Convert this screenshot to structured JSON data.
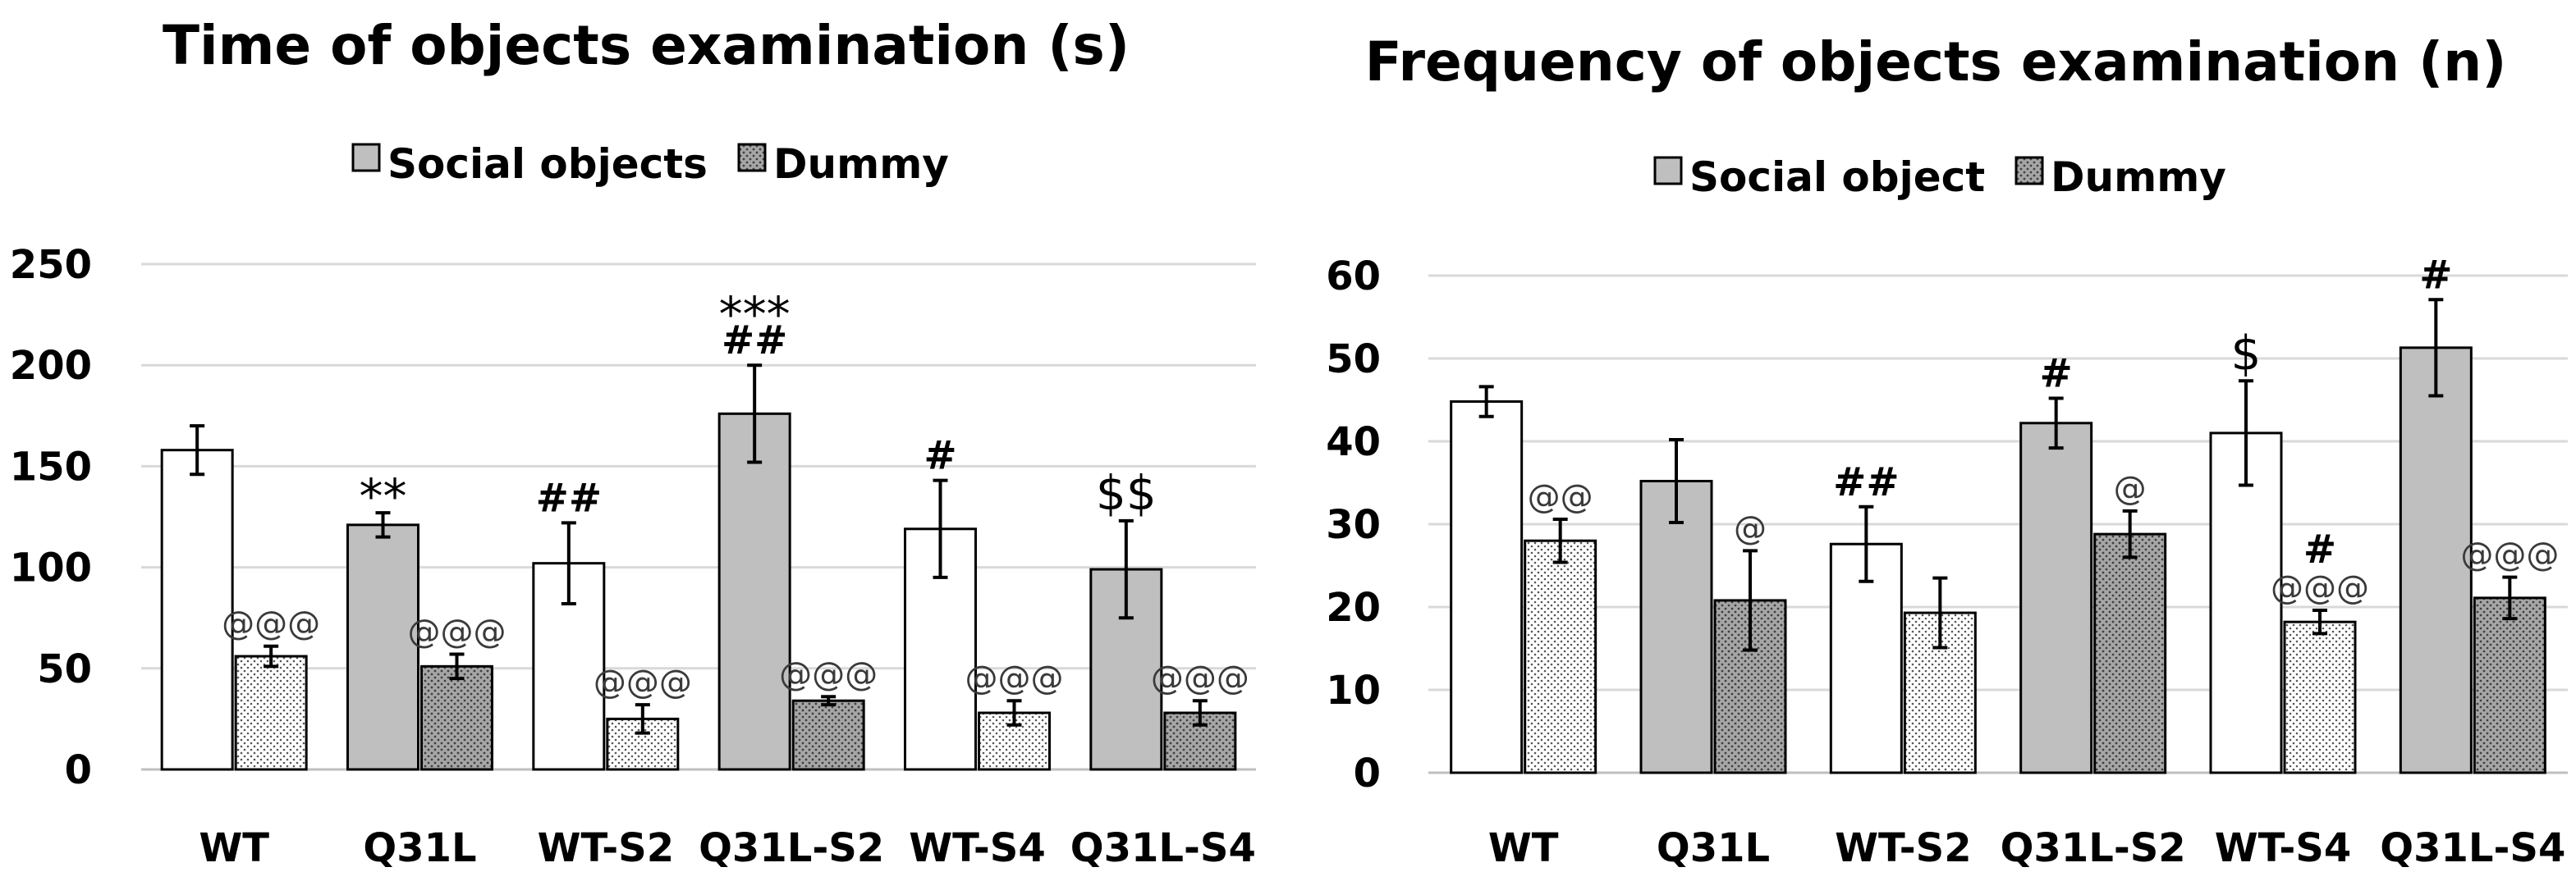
{
  "chart_data": [
    {
      "type": "bar",
      "title": "Time of objects examination (s)",
      "xlabel": "",
      "ylabel": "",
      "ylim": [
        0,
        250
      ],
      "yticks": [
        0,
        50,
        100,
        150,
        200,
        250
      ],
      "grid": true,
      "legend": {
        "position": "top",
        "entries": [
          "Social objects",
          "Dummy"
        ]
      },
      "categories": [
        "WT",
        "Q31L",
        "WT-S2",
        "Q31L-S2",
        "WT-S4",
        "Q31L-S4"
      ],
      "series": [
        {
          "name": "Social objects",
          "values": [
            158,
            121,
            102,
            176,
            119,
            99
          ],
          "errors": [
            12,
            6,
            20,
            24,
            24,
            24
          ],
          "fills": [
            "white",
            "gray",
            "white",
            "gray",
            "white",
            "gray"
          ]
        },
        {
          "name": "Dummy",
          "values": [
            56,
            51,
            25,
            34,
            28,
            28
          ],
          "errors": [
            5,
            6,
            7,
            2,
            6,
            6
          ],
          "fills": [
            "dots-white",
            "dots-gray",
            "dots-white",
            "dots-gray",
            "dots-white",
            "dots-gray"
          ]
        }
      ],
      "annotations": [
        {
          "category": 1,
          "series": 0,
          "lines": [
            "**"
          ]
        },
        {
          "category": 2,
          "series": 0,
          "lines": [
            "##"
          ]
        },
        {
          "category": 3,
          "series": 0,
          "lines": [
            "##",
            "***"
          ]
        },
        {
          "category": 4,
          "series": 0,
          "lines": [
            "#"
          ]
        },
        {
          "category": 5,
          "series": 0,
          "lines": [
            "$$"
          ]
        },
        {
          "category": 0,
          "series": 1,
          "lines": [
            "@@@"
          ]
        },
        {
          "category": 1,
          "series": 1,
          "lines": [
            "@@@"
          ]
        },
        {
          "category": 2,
          "series": 1,
          "lines": [
            "@@@"
          ]
        },
        {
          "category": 3,
          "series": 1,
          "lines": [
            "@@@"
          ]
        },
        {
          "category": 4,
          "series": 1,
          "lines": [
            "@@@"
          ]
        },
        {
          "category": 5,
          "series": 1,
          "lines": [
            "@@@"
          ]
        }
      ]
    },
    {
      "type": "bar",
      "title": "Frequency of objects examination (n)",
      "xlabel": "",
      "ylabel": "",
      "ylim": [
        0,
        60
      ],
      "yticks": [
        0,
        10,
        20,
        30,
        40,
        50,
        60
      ],
      "grid": true,
      "legend": {
        "position": "top",
        "entries": [
          "Social object",
          "Dummy"
        ]
      },
      "categories": [
        "WT",
        "Q31L",
        "WT-S2",
        "Q31L-S2",
        "WT-S4",
        "Q31L-S4"
      ],
      "series": [
        {
          "name": "Social object",
          "values": [
            44.8,
            35.2,
            27.6,
            42.2,
            41,
            51.3
          ],
          "errors": [
            1.8,
            5,
            4.5,
            3,
            6.3,
            5.8
          ],
          "fills": [
            "white",
            "gray",
            "white",
            "gray",
            "white",
            "gray"
          ]
        },
        {
          "name": "Dummy",
          "values": [
            28,
            20.8,
            19.3,
            28.8,
            18.2,
            21.1
          ],
          "errors": [
            2.6,
            6,
            4.2,
            2.8,
            1.4,
            2.5
          ],
          "fills": [
            "dots-white",
            "dots-gray",
            "dots-white",
            "dots-gray",
            "dots-white",
            "dots-gray"
          ]
        }
      ],
      "annotations": [
        {
          "category": 2,
          "series": 0,
          "lines": [
            "##"
          ]
        },
        {
          "category": 3,
          "series": 0,
          "lines": [
            "#"
          ]
        },
        {
          "category": 4,
          "series": 0,
          "lines": [
            "$"
          ]
        },
        {
          "category": 5,
          "series": 0,
          "lines": [
            "#"
          ]
        },
        {
          "category": 0,
          "series": 1,
          "lines": [
            "@@"
          ]
        },
        {
          "category": 1,
          "series": 1,
          "lines": [
            "@"
          ]
        },
        {
          "category": 3,
          "series": 1,
          "lines": [
            "@"
          ]
        },
        {
          "category": 4,
          "series": 1,
          "lines": [
            "@@@",
            "#"
          ]
        },
        {
          "category": 5,
          "series": 1,
          "lines": [
            "@@@"
          ]
        }
      ]
    }
  ],
  "colors": {
    "gray_fill": "#bfbfbf",
    "white_fill": "#ffffff",
    "dot_color": "#555555",
    "bar_outline": "#000000",
    "grid": "#d9d9d9"
  }
}
